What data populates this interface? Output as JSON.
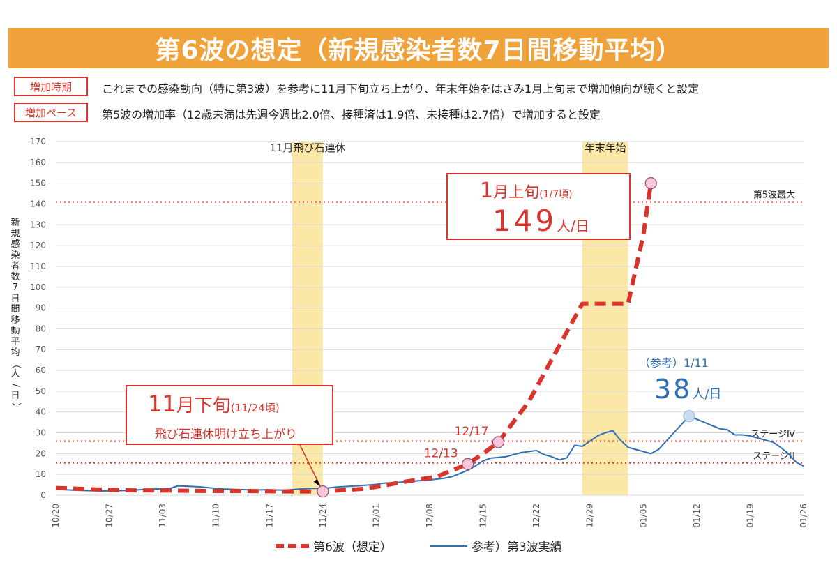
{
  "title": "第6波の想定（新規感染者数7日間移動平均）",
  "rows": [
    {
      "tag": "増加時期",
      "text": "これまでの感染動向（特に第3波）を参考に11月下旬立ち上がり、年末年始をはさみ1月上旬まで増加傾向が続くと設定"
    },
    {
      "tag": "増加ペース",
      "text": "第5波の増加率（12歳未満は先週今週比2.0倍、接種済は1.9倍、未接種は2.7倍）で増加すると設定"
    }
  ],
  "colors": {
    "title_bg": "#f0a23a",
    "accent": "#d9342b",
    "actual": "#2f6fb3",
    "band": "#fbe7a6",
    "marker_fill": "#f7c6da"
  },
  "chart_data": {
    "type": "line",
    "ylabel": "新規感染者数7日間移動平均（人/日）",
    "ylim": [
      0,
      170
    ],
    "yticks": [
      0,
      10,
      20,
      30,
      40,
      50,
      60,
      70,
      80,
      90,
      100,
      110,
      120,
      130,
      140,
      150,
      160,
      170
    ],
    "x_tick_labels": [
      "10/20",
      "10/27",
      "11/03",
      "11/10",
      "11/17",
      "11/24",
      "12/01",
      "12/08",
      "12/15",
      "12/22",
      "12/29",
      "01/05",
      "01/12",
      "01/19",
      "01/26"
    ],
    "x_range_days": [
      0,
      98
    ],
    "bands": [
      {
        "label": "11月飛び石連休",
        "start_day": 31,
        "end_day": 35
      },
      {
        "label": "年末年始",
        "start_day": 69,
        "end_day": 75
      }
    ],
    "reference_lines": [
      {
        "label": "第5波最大",
        "value": 141
      },
      {
        "label": "ステージⅣ",
        "value": 26
      },
      {
        "label": "ステージⅢ",
        "value": 15.5
      }
    ],
    "series": [
      {
        "name": "第6波（想定）",
        "style": "dashed",
        "x": [
          0,
          5,
          10,
          15,
          20,
          25,
          30,
          35,
          40,
          42,
          45,
          50,
          54,
          56,
          58,
          62,
          66,
          69,
          72,
          75,
          77,
          78
        ],
        "y": [
          3.5,
          2.8,
          2.3,
          2.2,
          2.0,
          2.0,
          1.8,
          1.8,
          3.0,
          4.0,
          6.0,
          9.0,
          15.0,
          20.0,
          25.5,
          45.0,
          72.0,
          92.0,
          92.0,
          92.0,
          125.0,
          150.0
        ]
      },
      {
        "name": "参考）第3波実績",
        "style": "solid",
        "x": [
          0,
          3,
          6,
          9,
          12,
          15,
          16,
          18,
          19,
          21,
          22,
          24,
          26,
          28,
          30,
          32,
          33,
          35,
          36,
          37,
          38,
          40,
          42,
          43,
          45,
          47,
          49,
          51,
          52,
          53,
          54,
          55,
          56,
          57,
          59,
          60,
          61,
          63,
          64,
          65,
          66,
          67,
          68,
          69,
          70,
          71,
          72,
          73,
          74,
          75,
          76,
          77,
          78,
          79,
          80,
          81,
          82,
          83,
          84,
          85,
          86,
          87,
          88,
          89,
          90,
          91,
          92,
          93,
          94,
          95,
          96,
          97,
          98
        ],
        "y": [
          2.8,
          2.3,
          2.0,
          2.2,
          2.8,
          3.3,
          4.5,
          4.2,
          4.0,
          3.3,
          3.0,
          2.7,
          2.5,
          2.6,
          2.4,
          3.0,
          3.3,
          3.3,
          3.6,
          4.0,
          4.2,
          4.6,
          5.2,
          5.8,
          6.2,
          6.8,
          7.3,
          8.2,
          9.0,
          10.5,
          12.0,
          14.0,
          16.5,
          17.8,
          18.5,
          19.5,
          20.5,
          21.5,
          19.5,
          18.5,
          17.0,
          18.0,
          24.0,
          23.5,
          26.0,
          28.5,
          30.0,
          31.0,
          26.5,
          23.0,
          22.0,
          21.0,
          20.0,
          22.0,
          26.0,
          30.0,
          34.0,
          38.0,
          36.5,
          35.0,
          33.5,
          32.0,
          31.5,
          29.0,
          29.0,
          28.5,
          27.5,
          26.5,
          25.5,
          23.0,
          20.0,
          16.0,
          14.0
        ]
      }
    ],
    "point_labels": [
      {
        "text": "12/13",
        "x": 54,
        "y": 15.0
      },
      {
        "text": "12/17",
        "x": 58,
        "y": 25.5
      }
    ],
    "markers": [
      {
        "series": "第6波（想定）",
        "x": 35,
        "y": 1.8
      },
      {
        "series": "第6波（想定）",
        "x": 54,
        "y": 15.0
      },
      {
        "series": "第6波（想定）",
        "x": 58,
        "y": 25.5
      },
      {
        "series": "第6波（想定）",
        "x": 78,
        "y": 150.0
      },
      {
        "series": "参考）第3波実績",
        "x": 83,
        "y": 38.0
      }
    ],
    "legend": [
      "第6波（想定）",
      "参考）第3波実績"
    ],
    "legend_position": "bottom"
  },
  "callouts": {
    "peak": {
      "main1": "1",
      "unit1": "月上旬",
      "sub": "(1/7頃)",
      "value": "149",
      "unit2": "人/日"
    },
    "start": {
      "main1": "11",
      "unit1": "月下旬",
      "sub": "(11/24頃)",
      "line2": "飛び石連休明け立ち上がり"
    },
    "reference": {
      "label": "（参考）1/11",
      "value": "38",
      "unit": "人/日"
    }
  }
}
